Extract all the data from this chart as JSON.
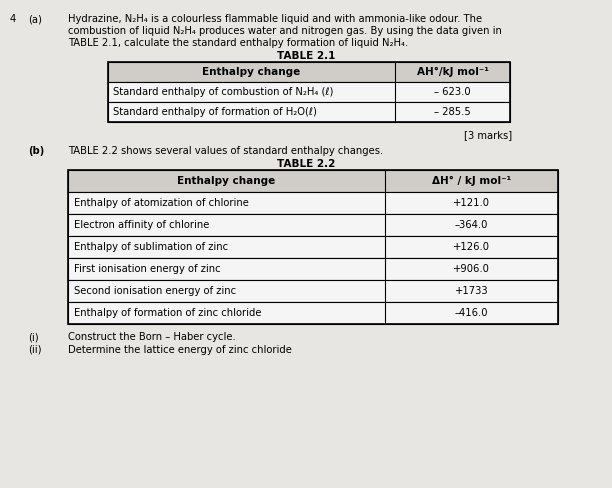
{
  "background_color": "#e8e6e2",
  "white_color": "#f5f5f5",
  "header_color": "#d0cdc9",
  "row_color": "#f0eee9",
  "question_number": "4",
  "part_a_label": "(a)",
  "part_a_text_line1": "Hydrazine, N₂H₄ is a colourless flammable liquid and with ammonia-like odour. The",
  "part_a_text_line2": "combustion of liquid N₂H₄ produces water and nitrogen gas. By using the data given in",
  "part_a_text_line3": "TABLE 2.1, calculate the standard enthalpy formation of liquid N₂H₄.",
  "table1_title": "TABLE 2.1",
  "table1_header_col1": "Enthalpy change",
  "table1_header_col2": "AH°/kJ mol⁻¹",
  "table1_rows": [
    [
      "Standard enthalpy of combustion of N₂H₄ (ℓ)",
      "– 623.0"
    ],
    [
      "Standard enthalpy of formation of H₂O(ℓ)",
      "– 285.5"
    ]
  ],
  "marks_text": "[3 marks]",
  "part_b_label": "(b)",
  "part_b_text": "TABLE 2.2 shows several values of standard enthalpy changes.",
  "table2_title": "TABLE 2.2",
  "table2_header_col1": "Enthalpy change",
  "table2_header_col2": "ΔH° / kJ mol⁻¹",
  "table2_rows": [
    [
      "Enthalpy of atomization of chlorine",
      "+121.0"
    ],
    [
      "Electron affinity of chlorine",
      "–364.0"
    ],
    [
      "Enthalpy of sublimation of zinc",
      "+126.0"
    ],
    [
      "First ionisation energy of zinc",
      "+906.0"
    ],
    [
      "Second ionisation energy of zinc",
      "+1733"
    ],
    [
      "Enthalpy of formation of zinc chloride",
      "–416.0"
    ]
  ],
  "part_bi_label": "(i)",
  "part_bi_text": "Construct the Born – Haber cycle.",
  "part_bii_label": "(ii)",
  "part_bii_text": "Determine the lattice energy of zinc chloride"
}
